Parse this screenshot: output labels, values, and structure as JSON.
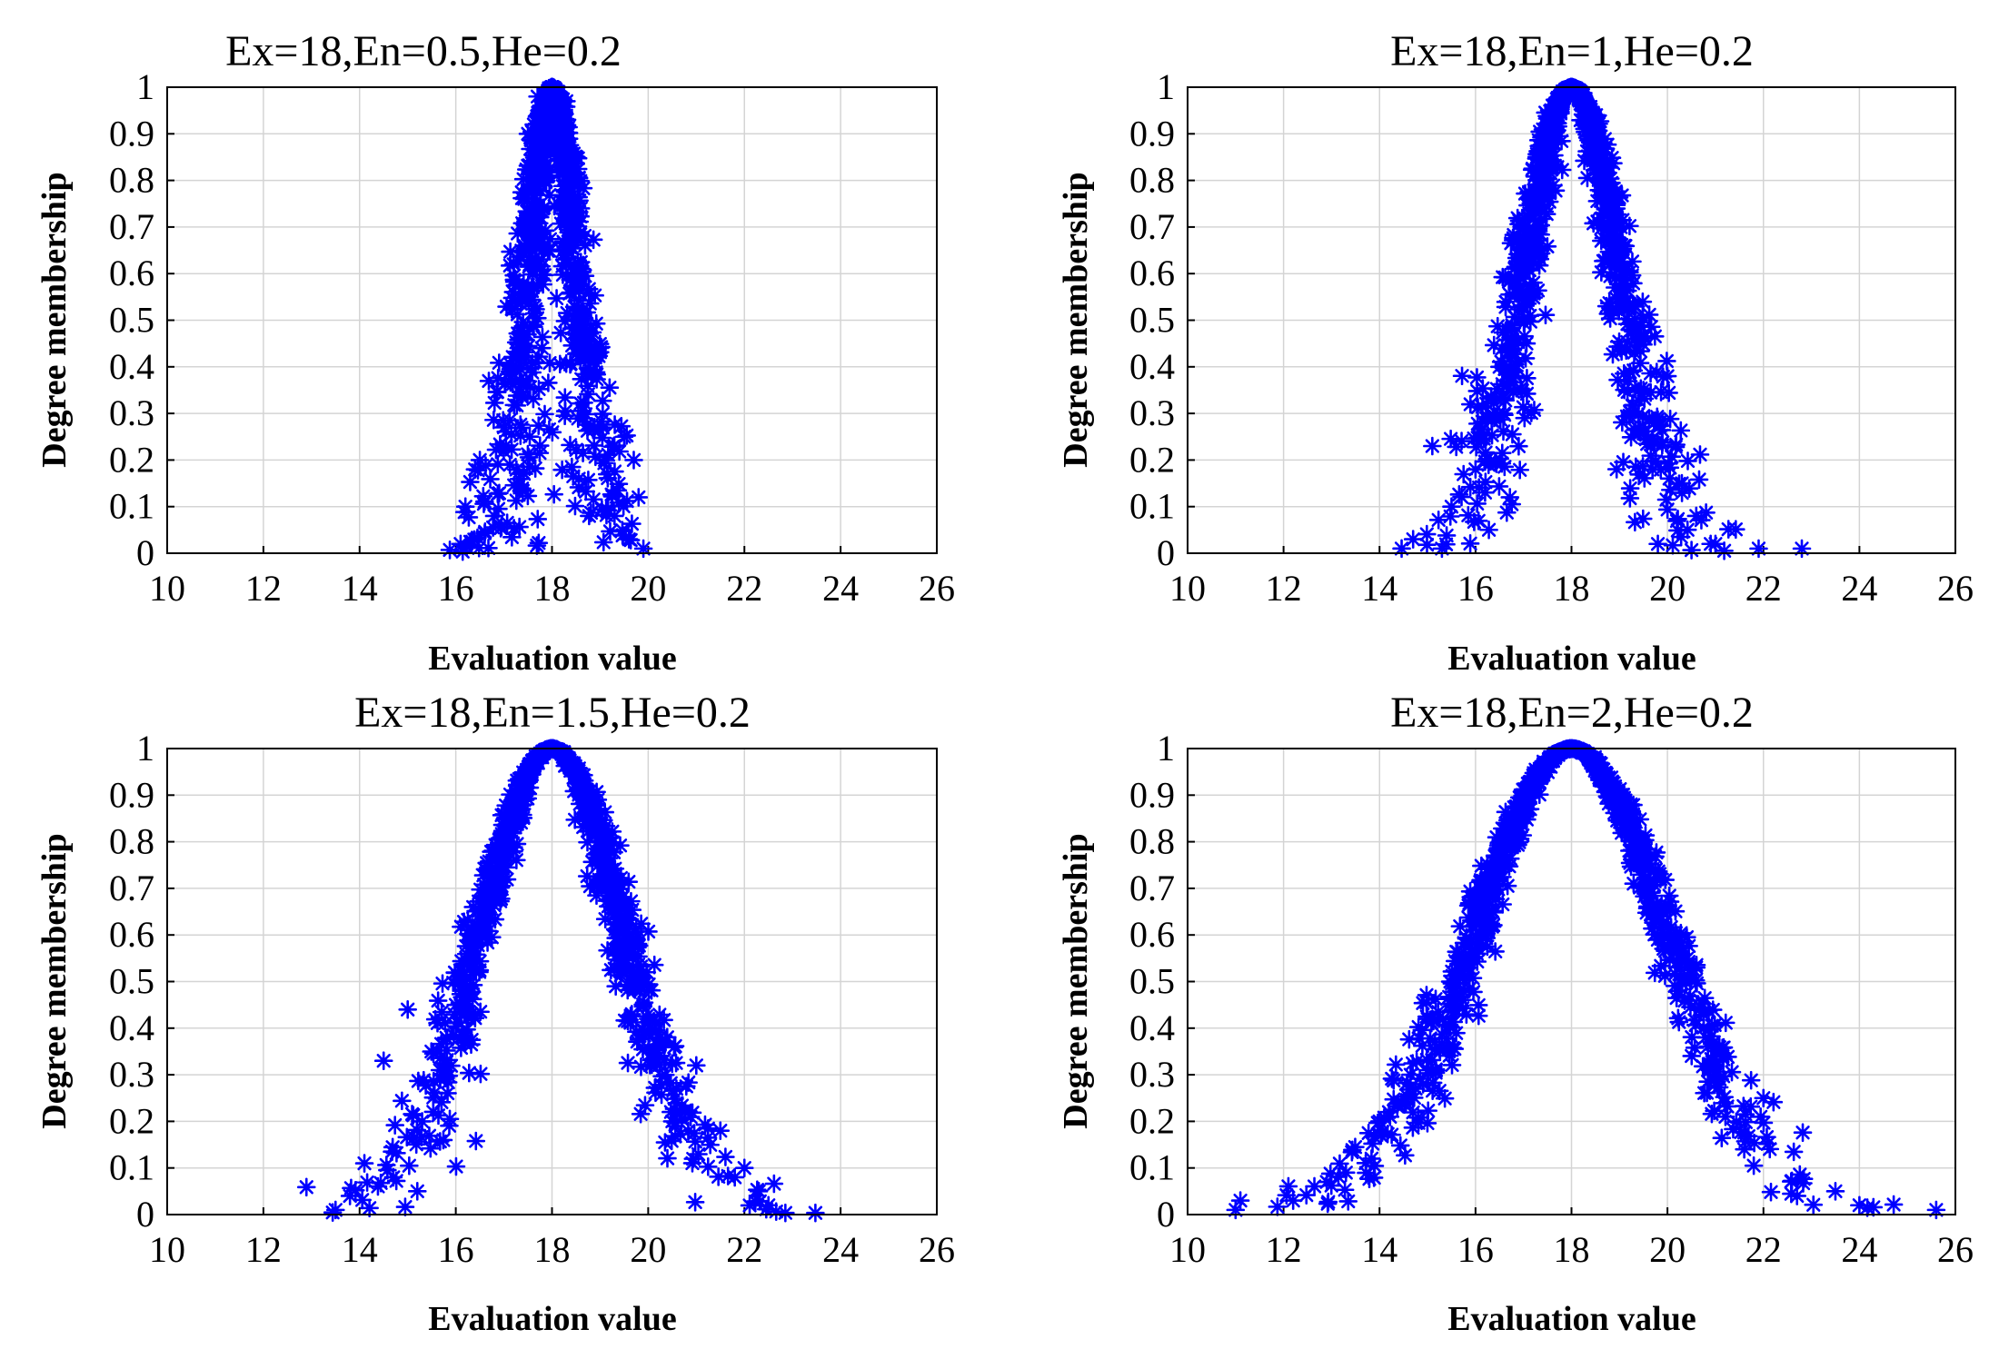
{
  "colors": {
    "marker": "#0000ff",
    "grid": "#d4d4d4",
    "axis": "#000000",
    "background": "#ffffff"
  },
  "chart_data": [
    {
      "type": "scatter",
      "title": "Ex=18,En=0.5,He=0.2",
      "xlabel": "Evaluation value",
      "ylabel": "Degree membership",
      "xlim": [
        10,
        26
      ],
      "ylim": [
        0,
        1
      ],
      "xticks": [
        "10",
        "12",
        "14",
        "16",
        "18",
        "20",
        "22",
        "24",
        "26"
      ],
      "yticks": [
        "0",
        "0.1",
        "0.2",
        "0.3",
        "0.4",
        "0.5",
        "0.6",
        "0.7",
        "0.8",
        "0.9",
        "1"
      ],
      "grid": true,
      "marker": "asterisk",
      "model": {
        "Ex": 18,
        "En": 0.5,
        "He": 0.2,
        "drops": 1000
      },
      "x": [
        16.1,
        16.2,
        16.4,
        16.5,
        16.8,
        17.0,
        17.2,
        17.5,
        17.7,
        18.0,
        18.3,
        18.6,
        18.9,
        19.1,
        19.3,
        19.5,
        19.7,
        19.8,
        19.9,
        19.6
      ],
      "y": [
        0.02,
        0.1,
        0.18,
        0.2,
        0.08,
        0.27,
        0.62,
        0.9,
        0.98,
        1.0,
        0.97,
        0.74,
        0.42,
        0.2,
        0.08,
        0.25,
        0.2,
        0.12,
        0.01,
        0.03
      ]
    },
    {
      "type": "scatter",
      "title": "Ex=18,En=1,He=0.2",
      "xlabel": "Evaluation value",
      "ylabel": "Degree membership",
      "xlim": [
        10,
        26
      ],
      "ylim": [
        0,
        1
      ],
      "xticks": [
        "10",
        "12",
        "14",
        "16",
        "18",
        "20",
        "22",
        "24",
        "26"
      ],
      "yticks": [
        "0",
        "0.1",
        "0.2",
        "0.3",
        "0.4",
        "0.5",
        "0.6",
        "0.7",
        "0.8",
        "0.9",
        "1"
      ],
      "grid": true,
      "marker": "asterisk",
      "model": {
        "Ex": 18,
        "En": 1,
        "He": 0.2,
        "drops": 1000
      },
      "x": [
        14.7,
        15.1,
        15.3,
        15.5,
        16.0,
        16.5,
        17.0,
        17.5,
        18.0,
        18.5,
        19.0,
        19.5,
        19.8,
        20.0,
        20.3,
        20.6,
        20.9,
        21.0,
        21.9,
        22.8
      ],
      "y": [
        0.03,
        0.23,
        0.01,
        0.1,
        0.18,
        0.4,
        0.7,
        0.92,
        1.0,
        0.9,
        0.62,
        0.35,
        0.02,
        0.38,
        0.15,
        0.08,
        0.02,
        0.02,
        0.01,
        0.01
      ]
    },
    {
      "type": "scatter",
      "title": "Ex=18,En=1.5,He=0.2",
      "xlabel": "Evaluation value",
      "ylabel": "Degree membership",
      "xlim": [
        10,
        26
      ],
      "ylim": [
        0,
        1
      ],
      "xticks": [
        "10",
        "12",
        "14",
        "16",
        "18",
        "20",
        "22",
        "24",
        "26"
      ],
      "yticks": [
        "0",
        "0.1",
        "0.2",
        "0.3",
        "0.4",
        "0.5",
        "0.6",
        "0.7",
        "0.8",
        "0.9",
        "1"
      ],
      "grid": true,
      "marker": "asterisk",
      "model": {
        "Ex": 18,
        "En": 1.5,
        "He": 0.2,
        "drops": 1000
      },
      "x": [
        13.5,
        13.8,
        14.1,
        14.5,
        14.7,
        15.0,
        15.2,
        15.3,
        16.0,
        17.0,
        18.0,
        19.0,
        20.0,
        20.5,
        21.0,
        21.5,
        21.8,
        22.0,
        22.3,
        22.5
      ],
      "y": [
        0.01,
        0.04,
        0.11,
        0.33,
        0.08,
        0.44,
        0.05,
        0.2,
        0.45,
        0.8,
        1.0,
        0.8,
        0.42,
        0.2,
        0.32,
        0.18,
        0.08,
        0.1,
        0.05,
        0.02
      ]
    },
    {
      "type": "scatter",
      "title": "Ex=18,En=2,He=0.2",
      "xlabel": "Evaluation value",
      "ylabel": "Degree membership",
      "xlim": [
        10,
        26
      ],
      "ylim": [
        0,
        1
      ],
      "xticks": [
        "10",
        "12",
        "14",
        "16",
        "18",
        "20",
        "22",
        "24",
        "26"
      ],
      "yticks": [
        "0",
        "0.1",
        "0.2",
        "0.3",
        "0.4",
        "0.5",
        "0.6",
        "0.7",
        "0.8",
        "0.9",
        "1"
      ],
      "grid": true,
      "marker": "asterisk",
      "model": {
        "Ex": 18,
        "En": 2,
        "He": 0.2,
        "drops": 1000
      },
      "x": [
        11.0,
        11.1,
        12.2,
        12.9,
        13.3,
        14.0,
        15.0,
        16.0,
        17.0,
        18.0,
        19.0,
        20.0,
        20.6,
        21.0,
        21.6,
        22.0,
        22.7,
        23.5,
        24.0,
        25.6
      ],
      "y": [
        0.01,
        0.03,
        0.03,
        0.07,
        0.09,
        0.2,
        0.42,
        0.68,
        0.9,
        1.0,
        0.88,
        0.6,
        0.53,
        0.3,
        0.14,
        0.25,
        0.04,
        0.05,
        0.02,
        0.01
      ]
    }
  ]
}
